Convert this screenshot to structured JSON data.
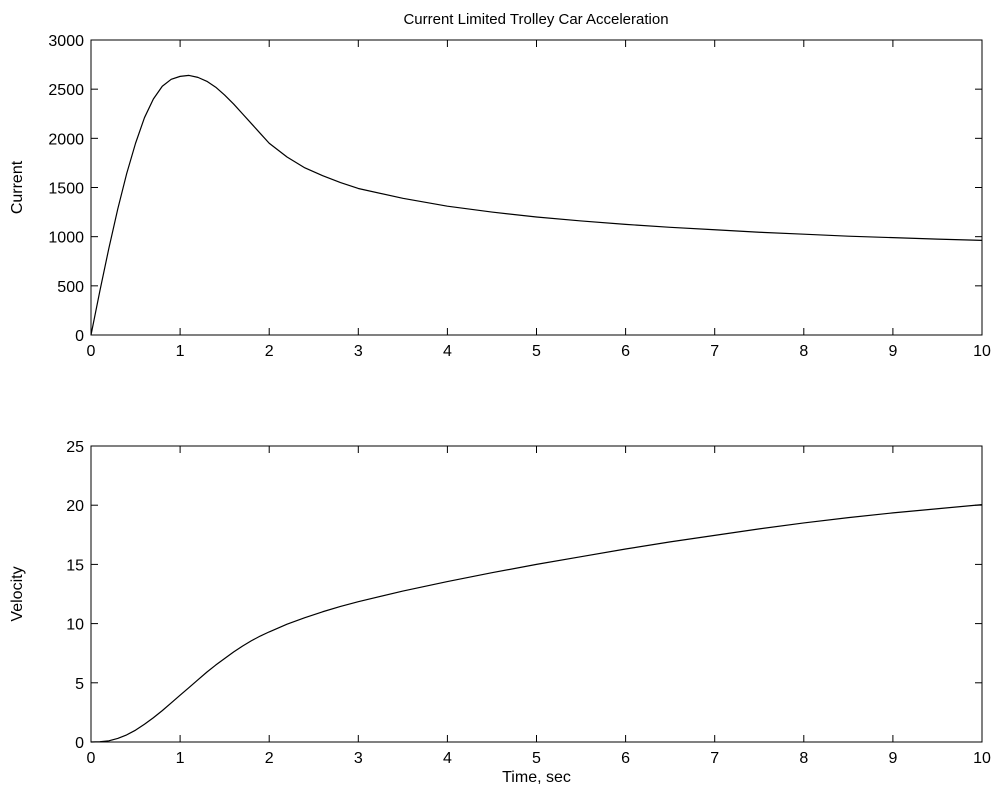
{
  "figure": {
    "title": "Current Limited Trolley Car Acceleration"
  },
  "chart_data": [
    {
      "type": "line",
      "title": "Current Limited Trolley Car Acceleration",
      "xlabel": "",
      "ylabel": "Current",
      "xlim": [
        0,
        10
      ],
      "ylim": [
        0,
        3000
      ],
      "x_ticks": [
        0,
        1,
        2,
        3,
        4,
        5,
        6,
        7,
        8,
        9,
        10
      ],
      "y_ticks": [
        0,
        500,
        1000,
        1500,
        2000,
        2500,
        3000
      ],
      "grid": false,
      "color": "#000000",
      "series": [
        {
          "x": [
            0,
            0.1,
            0.2,
            0.3,
            0.4,
            0.5,
            0.6,
            0.7,
            0.8,
            0.9,
            1.0,
            1.1,
            1.2,
            1.3,
            1.4,
            1.5,
            1.6,
            1.7,
            1.8,
            1.9,
            2.0,
            2.2,
            2.4,
            2.6,
            2.8,
            3.0,
            3.5,
            4.0,
            4.5,
            5.0,
            5.5,
            6.0,
            6.5,
            7.0,
            7.5,
            8.0,
            8.5,
            9.0,
            9.5,
            10.0
          ],
          "y": [
            0,
            450,
            880,
            1280,
            1640,
            1950,
            2210,
            2400,
            2530,
            2600,
            2630,
            2640,
            2620,
            2580,
            2520,
            2440,
            2350,
            2250,
            2150,
            2050,
            1950,
            1810,
            1700,
            1620,
            1550,
            1490,
            1390,
            1310,
            1250,
            1200,
            1160,
            1125,
            1095,
            1070,
            1045,
            1025,
            1005,
            990,
            975,
            962
          ]
        }
      ]
    },
    {
      "type": "line",
      "title": "",
      "xlabel": "Time, sec",
      "ylabel": "Velocity",
      "xlim": [
        0,
        10
      ],
      "ylim": [
        0,
        25
      ],
      "x_ticks": [
        0,
        1,
        2,
        3,
        4,
        5,
        6,
        7,
        8,
        9,
        10
      ],
      "y_ticks": [
        0,
        5,
        10,
        15,
        20,
        25
      ],
      "grid": false,
      "color": "#000000",
      "series": [
        {
          "x": [
            0,
            0.1,
            0.2,
            0.3,
            0.4,
            0.5,
            0.6,
            0.7,
            0.8,
            0.9,
            1.0,
            1.1,
            1.2,
            1.3,
            1.4,
            1.5,
            1.6,
            1.7,
            1.8,
            1.9,
            2.0,
            2.2,
            2.4,
            2.6,
            2.8,
            3.0,
            3.5,
            4.0,
            4.5,
            5.0,
            5.5,
            6.0,
            6.5,
            7.0,
            7.5,
            8.0,
            8.5,
            9.0,
            9.5,
            10.0
          ],
          "y": [
            0,
            0.02,
            0.1,
            0.3,
            0.6,
            1.0,
            1.5,
            2.05,
            2.65,
            3.3,
            3.95,
            4.6,
            5.25,
            5.9,
            6.5,
            7.05,
            7.6,
            8.1,
            8.55,
            8.95,
            9.3,
            9.95,
            10.5,
            11.0,
            11.45,
            11.85,
            12.75,
            13.55,
            14.3,
            15.0,
            15.65,
            16.3,
            16.9,
            17.45,
            18.0,
            18.5,
            18.95,
            19.35,
            19.7,
            20.05
          ]
        }
      ]
    }
  ]
}
